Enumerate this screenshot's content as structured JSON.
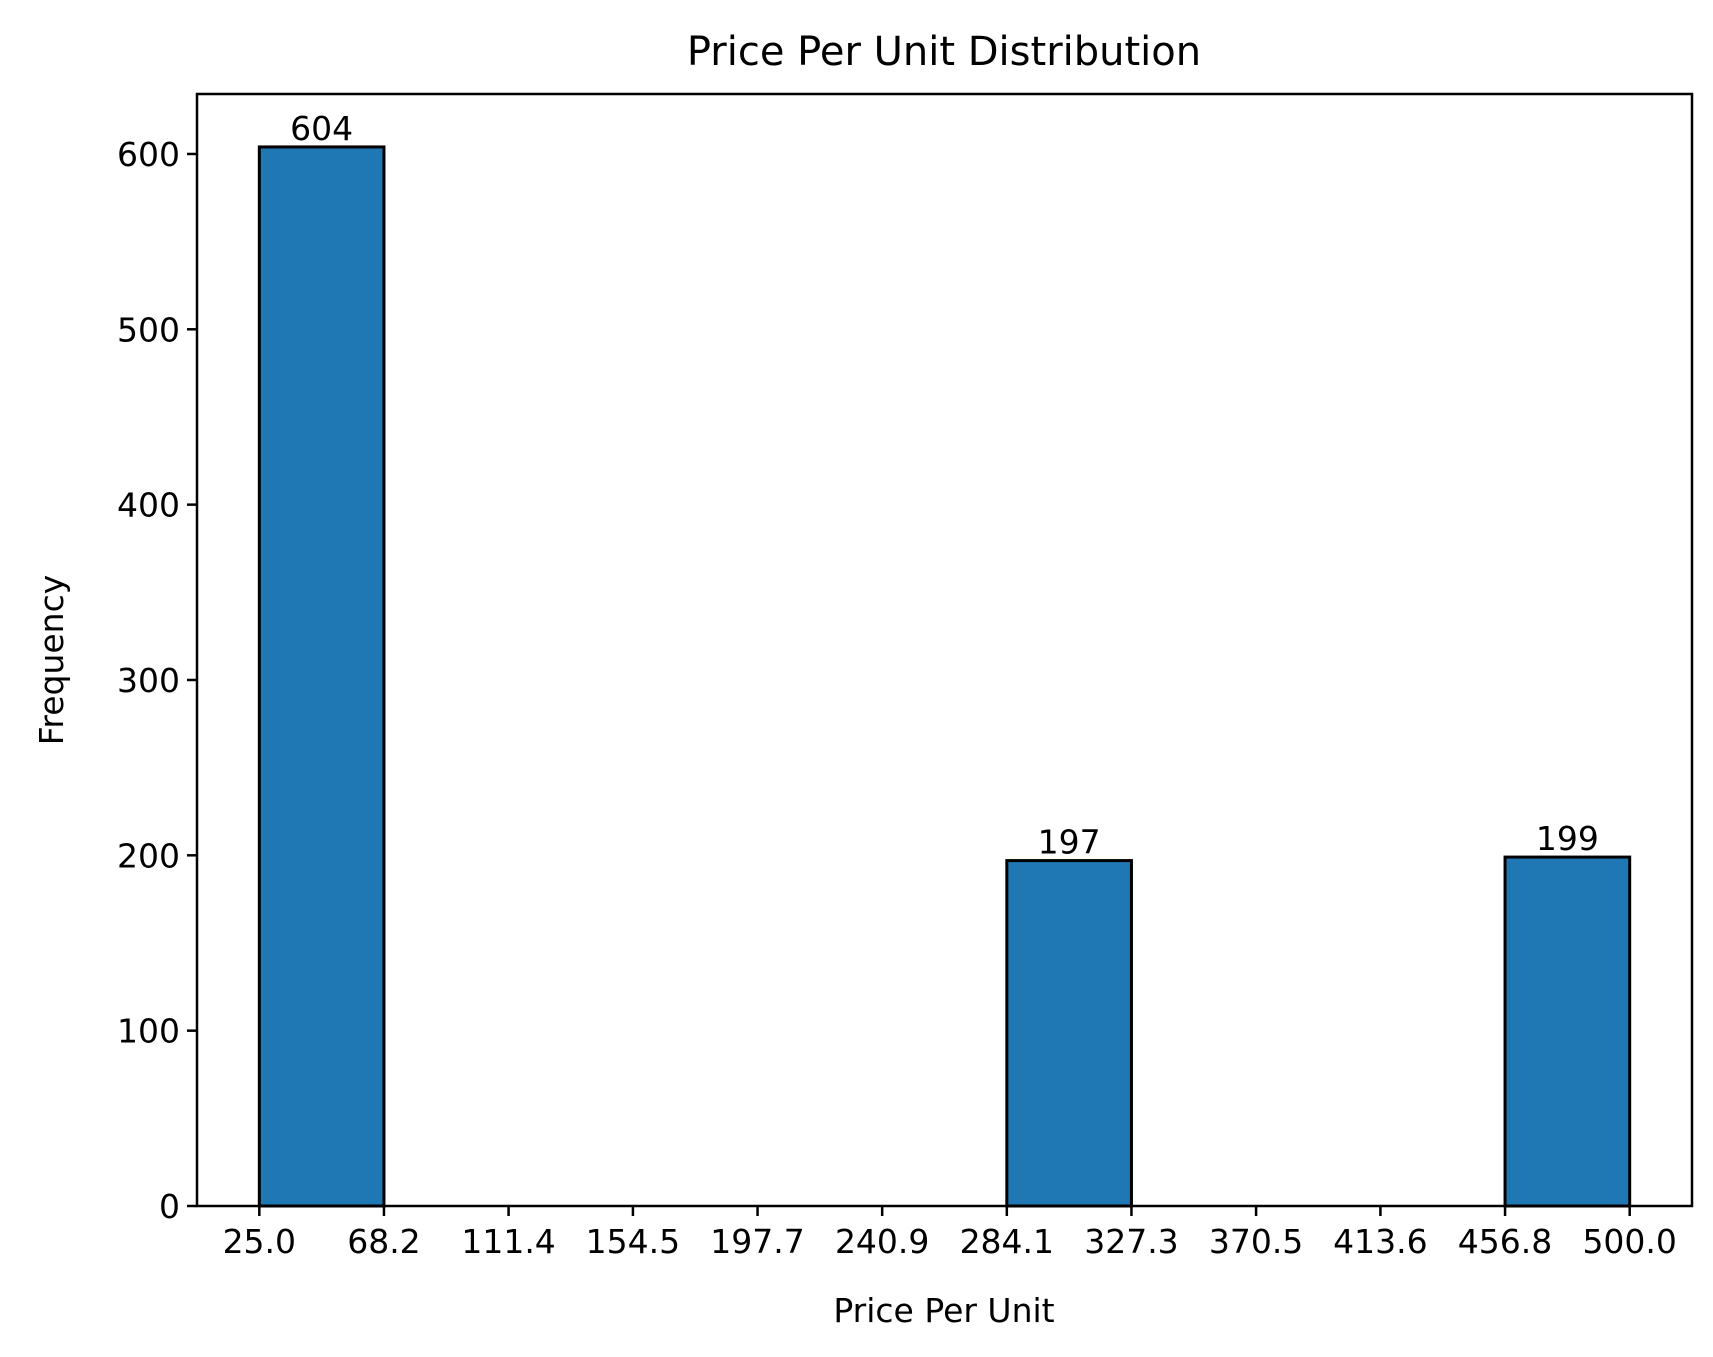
{
  "chart_data": {
    "type": "bar",
    "title": "Price Per Unit Distribution",
    "xlabel": "Price Per Unit",
    "ylabel": "Frequency",
    "bin_edges": [
      25.0,
      68.2,
      111.4,
      154.5,
      197.7,
      240.9,
      284.1,
      327.3,
      370.5,
      413.6,
      456.8,
      500.0
    ],
    "x_tick_labels": [
      "25.0",
      "68.2",
      "111.4",
      "154.5",
      "197.7",
      "240.9",
      "284.1",
      "327.3",
      "370.5",
      "413.6",
      "456.8",
      "500.0"
    ],
    "values": [
      604,
      0,
      0,
      0,
      0,
      0,
      197,
      0,
      0,
      0,
      199
    ],
    "data_labels": [
      "604",
      "",
      "",
      "",
      "",
      "",
      "197",
      "",
      "",
      "",
      "199"
    ],
    "y_ticks": [
      0,
      100,
      200,
      300,
      400,
      500,
      600
    ],
    "y_tick_labels": [
      "0",
      "100",
      "200",
      "300",
      "400",
      "500",
      "600"
    ],
    "xlim": [
      3.4,
      521.6
    ],
    "ylim": [
      0,
      634.2
    ],
    "grid": false,
    "bar_color": "#1f77b4",
    "edge_color": "#000000"
  }
}
